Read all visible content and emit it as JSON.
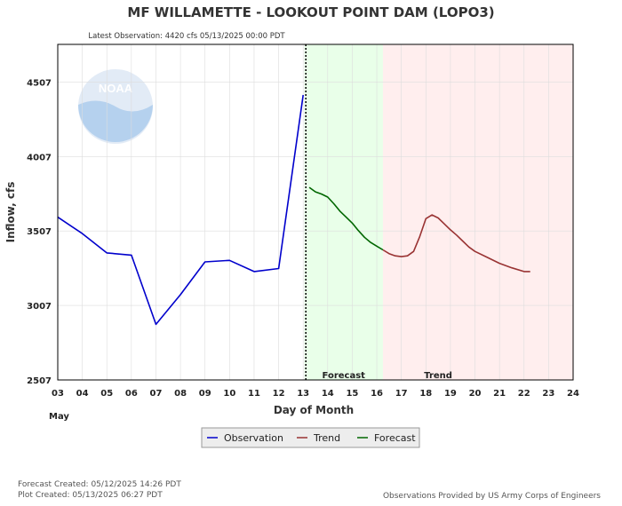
{
  "chart_data": {
    "type": "line",
    "title": "MF WILLAMETTE - LOOKOUT POINT DAM  (LOPO3)",
    "subtitle": "Latest Observation: 4420 cfs 05/13/2025 00:00 PDT",
    "xlabel": "Day of Month",
    "ylabel": "Inflow, cfs",
    "month_label": "May",
    "x_ticks": [
      "03",
      "04",
      "05",
      "06",
      "07",
      "08",
      "09",
      "10",
      "11",
      "12",
      "13",
      "14",
      "15",
      "16",
      "17",
      "18",
      "19",
      "20",
      "21",
      "22",
      "23",
      "24"
    ],
    "xlim": [
      3,
      24
    ],
    "y_ticks": [
      "2507",
      "3007",
      "3507",
      "4007",
      "4507"
    ],
    "ylim": [
      2507,
      4760
    ],
    "grid": true,
    "forecast_zone": {
      "label": "Forecast",
      "x_range": [
        13.05,
        16.25
      ],
      "color": "#e9ffe9"
    },
    "trend_zone": {
      "label": "Trend",
      "x_range": [
        16.25,
        24
      ],
      "color": "#ffeeee"
    },
    "latest_obs_x": 13.0,
    "series": [
      {
        "name": "Observation",
        "color": "#0000cc",
        "x": [
          3,
          4,
          5,
          6,
          7,
          8,
          9,
          10,
          11,
          12,
          13
        ],
        "y": [
          3600,
          3490,
          3360,
          3345,
          2880,
          3080,
          3300,
          3310,
          3235,
          3255,
          4420
        ]
      },
      {
        "name": "Forecast",
        "color": "#006600",
        "x": [
          13.25,
          13.5,
          13.75,
          14.0,
          14.25,
          14.5,
          14.75,
          15.0,
          15.25,
          15.5,
          15.75,
          16.0,
          16.25
        ],
        "y": [
          3800,
          3770,
          3755,
          3735,
          3690,
          3640,
          3600,
          3560,
          3510,
          3465,
          3430,
          3405,
          3380
        ]
      },
      {
        "name": "Trend",
        "color": "#993333",
        "x": [
          16.25,
          16.5,
          16.75,
          17.0,
          17.25,
          17.5,
          17.75,
          18.0,
          18.25,
          18.5,
          18.75,
          19.0,
          19.25,
          19.5,
          19.75,
          20.0,
          20.5,
          21.0,
          21.5,
          22.0,
          22.25
        ],
        "y": [
          3380,
          3355,
          3340,
          3335,
          3340,
          3370,
          3470,
          3590,
          3615,
          3595,
          3555,
          3515,
          3480,
          3440,
          3400,
          3370,
          3330,
          3290,
          3260,
          3235,
          3235
        ]
      }
    ],
    "legend": {
      "placement": "bottom-center",
      "items": [
        {
          "name": "Observation",
          "color": "#0000cc"
        },
        {
          "name": "Trend",
          "color": "#993333"
        },
        {
          "name": "Forecast",
          "color": "#006600"
        }
      ]
    }
  },
  "footer": {
    "forecast_created": "Forecast Created: 05/12/2025 14:26 PDT",
    "plot_created": "Plot Created: 05/13/2025 06:27 PDT",
    "credit": "Observations Provided by US Army Corps of Engineers"
  },
  "logo": {
    "text": "NOAA",
    "primary_color": "#1f6fb8",
    "accent_color": "#a9c9ec"
  }
}
